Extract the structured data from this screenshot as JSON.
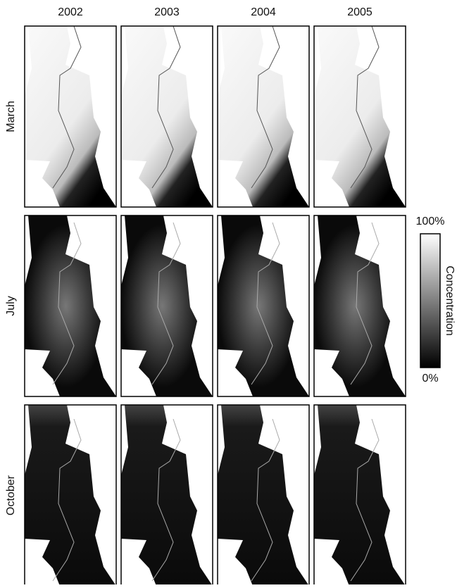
{
  "columns": [
    "2002",
    "2003",
    "2004",
    "2005"
  ],
  "rows": [
    "March",
    "July",
    "October"
  ],
  "colorbar": {
    "max": "100%",
    "min": "0%",
    "label": "Concentration"
  }
}
